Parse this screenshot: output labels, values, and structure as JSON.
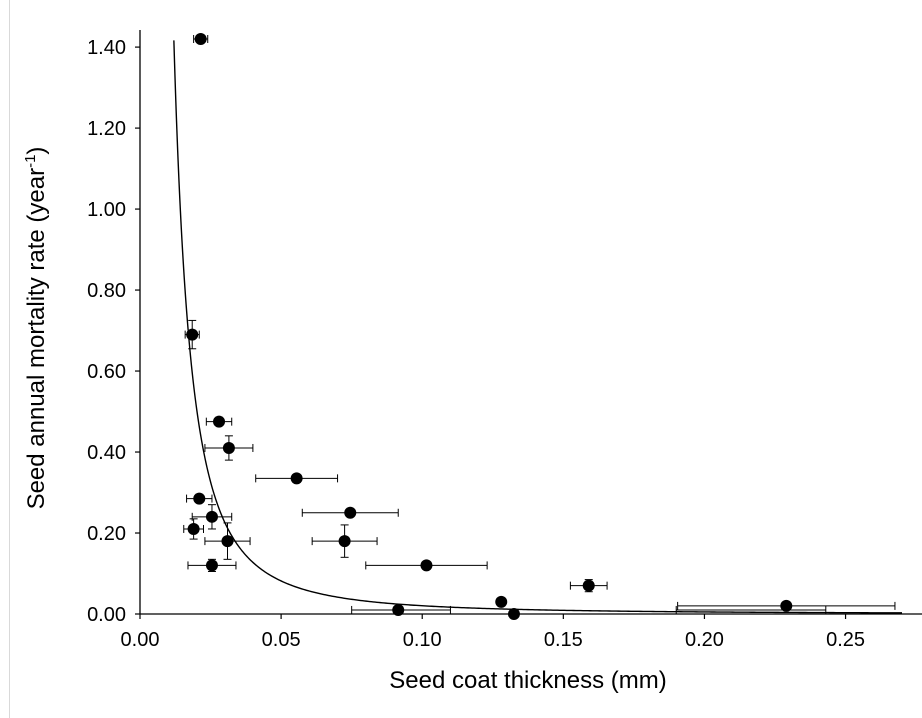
{
  "chart_data": {
    "type": "scatter",
    "title": "",
    "xlabel": "Seed coat thickness (mm)",
    "ylabel_main": "Seed annual mortality rate (year",
    "ylabel_sup": "-1",
    "ylabel_close": ")",
    "xlim": [
      0,
      0.27
    ],
    "ylim": [
      0,
      1.42
    ],
    "x_ticks": [
      0.0,
      0.05,
      0.1,
      0.15,
      0.2,
      0.25
    ],
    "x_tick_labels": [
      "0.00",
      "0.05",
      "0.10",
      "0.15",
      "0.20",
      "0.25"
    ],
    "y_ticks": [
      0.0,
      0.2,
      0.4,
      0.6,
      0.8,
      1.0,
      1.2,
      1.4
    ],
    "y_tick_labels": [
      "0.00",
      "0.20",
      "0.40",
      "0.60",
      "0.80",
      "1.00",
      "1.20",
      "1.40"
    ],
    "grid": false,
    "legend": "none",
    "points": [
      {
        "x": 0.0215,
        "y": 1.42,
        "xerr": 0.0025,
        "yerr": 0.0
      },
      {
        "x": 0.0185,
        "y": 0.69,
        "xerr": 0.0025,
        "yerr": 0.035
      },
      {
        "x": 0.028,
        "y": 0.475,
        "xerr": 0.0045,
        "yerr": 0.0
      },
      {
        "x": 0.0315,
        "y": 0.41,
        "xerr": 0.0085,
        "yerr": 0.03
      },
      {
        "x": 0.0555,
        "y": 0.335,
        "xerr": 0.0145,
        "yerr": 0.0
      },
      {
        "x": 0.021,
        "y": 0.285,
        "xerr": 0.0045,
        "yerr": 0.0
      },
      {
        "x": 0.0745,
        "y": 0.25,
        "xerr": 0.017,
        "yerr": 0.0
      },
      {
        "x": 0.0255,
        "y": 0.24,
        "xerr": 0.007,
        "yerr": 0.03
      },
      {
        "x": 0.019,
        "y": 0.21,
        "xerr": 0.0035,
        "yerr": 0.025
      },
      {
        "x": 0.0725,
        "y": 0.18,
        "xerr": 0.0115,
        "yerr": 0.04
      },
      {
        "x": 0.031,
        "y": 0.18,
        "xerr": 0.008,
        "yerr": 0.045
      },
      {
        "x": 0.1015,
        "y": 0.12,
        "xerr": 0.0215,
        "yerr": 0.0
      },
      {
        "x": 0.0255,
        "y": 0.12,
        "xerr": 0.0085,
        "yerr": 0.015
      },
      {
        "x": 0.159,
        "y": 0.07,
        "xerr": 0.0065,
        "yerr": 0.015
      },
      {
        "x": 0.128,
        "y": 0.03,
        "xerr": 0.0,
        "yerr": 0.0
      },
      {
        "x": 0.229,
        "y": 0.02,
        "xerr": 0.0385,
        "yerr": 0.0
      },
      {
        "x": 0.0915,
        "y": 0.01,
        "xerr": 0.0,
        "yerr": 0.0
      },
      {
        "x": 0.1325,
        "y": 0.0,
        "xerr": 0.0,
        "yerr": 0.0
      }
    ],
    "hbars_extra": [
      {
        "x1": 0.075,
        "x2": 0.11,
        "y": 0.01
      },
      {
        "x1": 0.19,
        "x2": 0.243,
        "y": 0.01
      }
    ],
    "fit_curve": {
      "model": "power",
      "a": 0.000204,
      "b": -2.0,
      "xmin": 0.012,
      "xmax": 0.27
    }
  }
}
